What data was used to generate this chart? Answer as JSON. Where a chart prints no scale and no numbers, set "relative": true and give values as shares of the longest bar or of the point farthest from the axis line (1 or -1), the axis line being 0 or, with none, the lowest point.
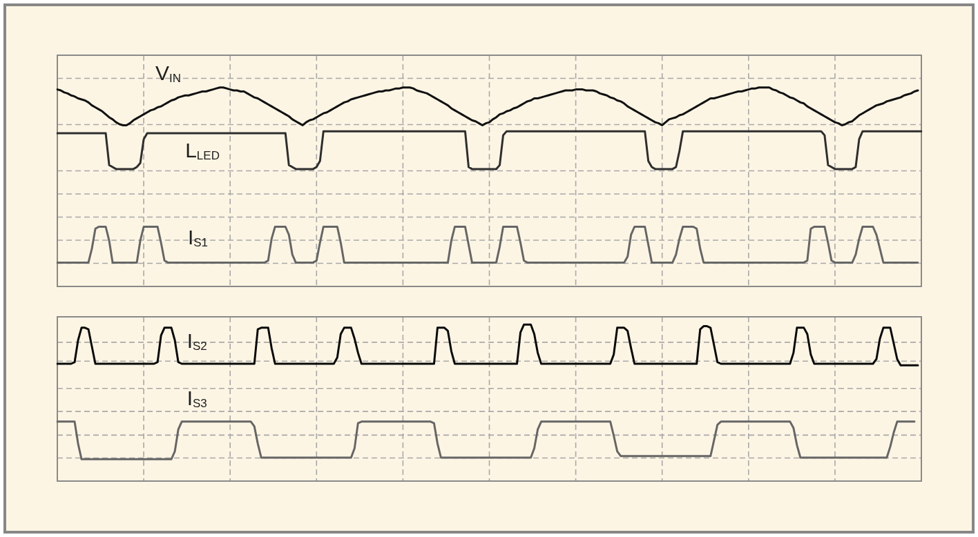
{
  "chart_data": [
    {
      "type": "line",
      "relative": true,
      "grid": true,
      "marker": "none",
      "categories": [
        null,
        null,
        null,
        null,
        null,
        null,
        null,
        null,
        null,
        null,
        null,
        null,
        null,
        null,
        null,
        null,
        null,
        null,
        null,
        null,
        null,
        null,
        null,
        null,
        null,
        null,
        null,
        null,
        null,
        null,
        null,
        null,
        null,
        null,
        null,
        null,
        null,
        null,
        null,
        null,
        null,
        null,
        null,
        null,
        null,
        null,
        null,
        null,
        null,
        null,
        null,
        null,
        null,
        null,
        null,
        null,
        null,
        null,
        null,
        null,
        null,
        null,
        null,
        null,
        null,
        null,
        null,
        null,
        null,
        null,
        null,
        null,
        null,
        null,
        null,
        null,
        null,
        null,
        null,
        null,
        null,
        null,
        null,
        null,
        null,
        null,
        null,
        null,
        null,
        null,
        null,
        null,
        null,
        null,
        null,
        null,
        null,
        null,
        null,
        null,
        null,
        null,
        null,
        null,
        null,
        null,
        null,
        null,
        null,
        null,
        null,
        null,
        null,
        null,
        null,
        null,
        null,
        null,
        null,
        null,
        null,
        null,
        null,
        null,
        null,
        null,
        null,
        null,
        null,
        null,
        null,
        null,
        null,
        null,
        null,
        null,
        null,
        null,
        null,
        null,
        null,
        null,
        null,
        null,
        null,
        null,
        null,
        null,
        null,
        null,
        null,
        null,
        null,
        null,
        null,
        null,
        null,
        null,
        null,
        null,
        null,
        null,
        null,
        null,
        null,
        null,
        null,
        null,
        null,
        null,
        null,
        null,
        null,
        null,
        null,
        null,
        null,
        null,
        null,
        null,
        null,
        null,
        null,
        null,
        null,
        null,
        null,
        null,
        null,
        null,
        null,
        null,
        null,
        null,
        null,
        null,
        null,
        null,
        null,
        null,
        null,
        null,
        null,
        null,
        null,
        null,
        null,
        null,
        null,
        null,
        null,
        null,
        null,
        null,
        null,
        null,
        null,
        null,
        null,
        null,
        null,
        null,
        null,
        null,
        null,
        null,
        null,
        null,
        null,
        null,
        null,
        null,
        null,
        null,
        null,
        null,
        null,
        null,
        null,
        null,
        null,
        null,
        null,
        null,
        null,
        null,
        null,
        null,
        null,
        null,
        null
      ],
      "series": [
        {
          "name": "V$_{IN}$",
          "color": "#111111",
          "values": [
            0.99,
            0.985,
            0.975,
            0.97,
            0.96,
            0.955,
            0.945,
            0.94,
            0.935,
            0.925,
            0.91,
            0.9,
            0.89,
            0.88,
            0.865,
            0.85,
            0.84,
            0.825,
            0.815,
            0.81,
            0.81,
            0.82,
            0.835,
            0.845,
            0.855,
            0.865,
            0.875,
            0.885,
            0.89,
            0.9,
            0.905,
            0.915,
            0.925,
            0.935,
            0.94,
            0.95,
            0.955,
            0.96,
            0.96,
            0.965,
            0.97,
            0.975,
            0.98,
            0.98,
            0.985,
            0.99,
            0.995,
            1,
            1,
            0.995,
            0.99,
            0.985,
            0.985,
            0.98,
            0.98,
            0.97,
            0.96,
            0.95,
            0.945,
            0.935,
            0.925,
            0.915,
            0.905,
            0.895,
            0.885,
            0.875,
            0.865,
            0.855,
            0.84,
            0.83,
            0.82,
            0.81,
            0.825,
            0.835,
            0.84,
            0.85,
            0.86,
            0.87,
            0.875,
            0.885,
            0.895,
            0.905,
            0.915,
            0.925,
            0.93,
            0.94,
            0.945,
            0.95,
            0.955,
            0.96,
            0.965,
            0.97,
            0.975,
            0.98,
            0.98,
            0.985,
            0.985,
            0.99,
            0.995,
            0.995,
            1,
            1,
            1,
            0.995,
            0.985,
            0.98,
            0.975,
            0.97,
            0.96,
            0.95,
            0.94,
            0.93,
            0.92,
            0.91,
            0.895,
            0.885,
            0.875,
            0.865,
            0.855,
            0.845,
            0.835,
            0.83,
            0.82,
            0.81,
            0.82,
            0.825,
            0.84,
            0.85,
            0.865,
            0.87,
            0.88,
            0.885,
            0.895,
            0.9,
            0.91,
            0.92,
            0.93,
            0.935,
            0.945,
            0.945,
            0.95,
            0.955,
            0.96,
            0.965,
            0.97,
            0.975,
            0.98,
            0.985,
            0.985,
            0.985,
            0.99,
            0.99,
            0.99,
            0.985,
            0.985,
            0.985,
            0.98,
            0.97,
            0.965,
            0.96,
            0.95,
            0.945,
            0.935,
            0.93,
            0.92,
            0.905,
            0.895,
            0.885,
            0.875,
            0.865,
            0.855,
            0.845,
            0.835,
            0.825,
            0.82,
            0.81,
            0.825,
            0.84,
            0.845,
            0.85,
            0.86,
            0.865,
            0.875,
            0.885,
            0.895,
            0.905,
            0.915,
            0.925,
            0.935,
            0.945,
            0.945,
            0.95,
            0.955,
            0.96,
            0.965,
            0.97,
            0.975,
            0.98,
            0.98,
            0.985,
            0.99,
            0.995,
            0.995,
            1,
            1,
            1,
            1,
            0.99,
            0.985,
            0.975,
            0.97,
            0.96,
            0.95,
            0.945,
            0.935,
            0.925,
            0.92,
            0.905,
            0.895,
            0.885,
            0.875,
            0.865,
            0.855,
            0.845,
            0.835,
            0.825,
            0.82,
            0.81,
            0.815,
            0.825,
            0.83,
            0.845,
            0.86,
            0.87,
            0.88,
            0.89,
            0.9,
            0.91,
            0.915,
            0.92,
            0.93,
            0.935,
            0.94,
            0.945,
            0.95,
            0.96,
            0.965,
            0.97,
            0.98,
            0.985,
            null
          ]
        },
        {
          "name": "L$_{LED}$",
          "color": "#2e2e2e",
          "values": [
            0.77,
            0.77,
            0.77,
            0.77,
            0.77,
            0.77,
            0.77,
            0.77,
            0.77,
            0.77,
            0.77,
            0.77,
            0.77,
            0.77,
            0.77,
            0.61,
            0.6,
            0.59,
            0.59,
            0.59,
            0.59,
            0.59,
            0.59,
            0.6,
            0.62,
            0.74,
            0.77,
            0.77,
            0.77,
            0.77,
            0.77,
            0.77,
            0.77,
            0.77,
            0.77,
            0.77,
            0.77,
            0.77,
            0.77,
            0.77,
            0.77,
            0.77,
            0.77,
            0.77,
            0.77,
            0.77,
            0.77,
            0.77,
            0.77,
            0.77,
            0.77,
            0.77,
            0.77,
            0.77,
            0.77,
            0.77,
            0.77,
            0.77,
            0.77,
            0.77,
            0.77,
            0.77,
            0.77,
            0.77,
            0.77,
            0.77,
            0.77,
            0.61,
            0.6,
            0.59,
            0.59,
            0.59,
            0.59,
            0.59,
            0.59,
            0.6,
            0.63,
            0.78,
            0.78,
            0.78,
            0.78,
            0.78,
            0.78,
            0.78,
            0.78,
            0.78,
            0.78,
            0.78,
            0.78,
            0.78,
            0.78,
            0.78,
            0.78,
            0.78,
            0.78,
            0.78,
            0.78,
            0.78,
            0.78,
            0.78,
            0.78,
            0.78,
            0.78,
            0.78,
            0.78,
            0.78,
            0.78,
            0.78,
            0.78,
            0.78,
            0.78,
            0.78,
            0.78,
            0.78,
            0.78,
            0.78,
            0.78,
            0.78,
            0.78,
            0.6,
            0.59,
            0.59,
            0.59,
            0.59,
            0.59,
            0.59,
            0.59,
            0.59,
            0.61,
            0.76,
            0.78,
            0.78,
            0.78,
            0.78,
            0.78,
            0.78,
            0.78,
            0.78,
            0.78,
            0.78,
            0.78,
            0.78,
            0.78,
            0.78,
            0.78,
            0.78,
            0.78,
            0.78,
            0.78,
            0.78,
            0.78,
            0.78,
            0.78,
            0.78,
            0.78,
            0.78,
            0.78,
            0.78,
            0.78,
            0.78,
            0.78,
            0.78,
            0.78,
            0.78,
            0.78,
            0.78,
            0.78,
            0.78,
            0.78,
            0.78,
            0.78,
            0.63,
            0.6,
            0.59,
            0.59,
            0.59,
            0.59,
            0.59,
            0.59,
            0.6,
            0.68,
            0.78,
            0.78,
            0.78,
            0.78,
            0.78,
            0.78,
            0.78,
            0.78,
            0.78,
            0.78,
            0.78,
            0.78,
            0.78,
            0.78,
            0.78,
            0.78,
            0.78,
            0.78,
            0.78,
            0.78,
            0.78,
            0.78,
            0.78,
            0.78,
            0.78,
            0.78,
            0.78,
            0.78,
            0.78,
            0.78,
            0.78,
            0.78,
            0.78,
            0.78,
            0.78,
            0.78,
            0.78,
            0.78,
            0.78,
            0.78,
            0.78,
            0.76,
            0.61,
            0.6,
            0.59,
            0.59,
            0.59,
            0.59,
            0.59,
            0.59,
            0.6,
            0.74,
            0.78,
            0.78,
            0.78,
            0.78,
            0.78,
            0.78,
            0.78,
            0.78,
            0.78,
            0.78,
            0.78,
            0.78,
            0.78,
            0.78,
            0.78,
            0.78,
            0.78,
            0.78
          ]
        },
        {
          "name": "I$_{S1}$",
          "color": "#666666",
          "values": [
            0.12,
            0.12,
            0.12,
            0.12,
            0.12,
            0.12,
            0.12,
            0.12,
            0.12,
            0.12,
            0.19,
            0.29,
            0.3,
            0.3,
            0.3,
            0.23,
            0.12,
            0.12,
            0.12,
            0.12,
            0.12,
            0.12,
            0.12,
            0.12,
            0.23,
            0.3,
            0.3,
            0.3,
            0.3,
            0.3,
            0.22,
            0.13,
            0.12,
            0.12,
            0.12,
            0.12,
            0.12,
            0.12,
            0.12,
            0.12,
            0.12,
            0.12,
            0.12,
            0.12,
            0.12,
            0.12,
            0.12,
            0.12,
            0.12,
            0.12,
            0.12,
            0.12,
            0.12,
            0.12,
            0.12,
            0.12,
            0.12,
            0.12,
            0.12,
            0.12,
            0.12,
            0.13,
            0.24,
            0.3,
            0.3,
            0.3,
            0.3,
            0.26,
            0.16,
            0.12,
            0.12,
            0.12,
            0.12,
            0.12,
            0.12,
            0.13,
            0.22,
            0.3,
            0.3,
            0.3,
            0.3,
            0.3,
            0.22,
            0.12,
            0.12,
            0.12,
            0.12,
            0.12,
            0.12,
            0.12,
            0.12,
            0.12,
            0.12,
            0.12,
            0.12,
            0.12,
            0.12,
            0.12,
            0.12,
            0.12,
            0.12,
            0.12,
            0.12,
            0.12,
            0.12,
            0.12,
            0.12,
            0.12,
            0.12,
            0.12,
            0.12,
            0.12,
            0.12,
            0.12,
            0.23,
            0.3,
            0.3,
            0.3,
            0.3,
            0.21,
            0.12,
            0.12,
            0.12,
            0.12,
            0.12,
            0.12,
            0.12,
            0.12,
            0.2,
            0.3,
            0.3,
            0.3,
            0.3,
            0.3,
            0.22,
            0.13,
            0.12,
            0.12,
            0.12,
            0.12,
            0.12,
            0.12,
            0.12,
            0.12,
            0.12,
            0.12,
            0.12,
            0.12,
            0.12,
            0.12,
            0.12,
            0.12,
            0.12,
            0.12,
            0.12,
            0.12,
            0.12,
            0.12,
            0.12,
            0.12,
            0.12,
            0.12,
            0.12,
            0.12,
            0.12,
            0.15,
            0.26,
            0.3,
            0.3,
            0.3,
            0.3,
            0.21,
            0.12,
            0.12,
            0.12,
            0.12,
            0.12,
            0.12,
            0.12,
            0.16,
            0.24,
            0.3,
            0.3,
            0.3,
            0.3,
            0.29,
            0.19,
            0.12,
            0.12,
            0.12,
            0.12,
            0.12,
            0.12,
            0.12,
            0.12,
            0.12,
            0.12,
            0.12,
            0.12,
            0.12,
            0.12,
            0.12,
            0.12,
            0.12,
            0.12,
            0.12,
            0.12,
            0.12,
            0.12,
            0.12,
            0.12,
            0.12,
            0.12,
            0.12,
            0.12,
            0.12,
            0.12,
            0.13,
            0.29,
            0.3,
            0.3,
            0.3,
            0.3,
            0.22,
            0.13,
            0.12,
            0.12,
            0.12,
            0.12,
            0.12,
            0.12,
            0.16,
            0.24,
            0.3,
            0.3,
            0.3,
            0.3,
            0.26,
            0.19,
            0.12,
            0.12,
            0.12,
            0.12,
            0.12,
            0.12,
            0.12,
            0.12,
            0.12,
            0.12,
            0.12,
            null
          ]
        }
      ]
    },
    {
      "type": "line",
      "relative": true,
      "grid": true,
      "marker": "none",
      "categories": [
        null,
        null,
        null,
        null,
        null,
        null,
        null,
        null,
        null,
        null,
        null,
        null,
        null,
        null,
        null,
        null,
        null,
        null,
        null,
        null,
        null,
        null,
        null,
        null,
        null,
        null,
        null,
        null,
        null,
        null,
        null,
        null,
        null,
        null,
        null,
        null,
        null,
        null,
        null,
        null,
        null,
        null,
        null,
        null,
        null,
        null,
        null,
        null,
        null,
        null,
        null,
        null,
        null,
        null,
        null,
        null,
        null,
        null,
        null,
        null,
        null,
        null,
        null,
        null,
        null,
        null,
        null,
        null,
        null,
        null,
        null,
        null,
        null,
        null,
        null,
        null,
        null,
        null,
        null,
        null,
        null,
        null,
        null,
        null,
        null,
        null,
        null,
        null,
        null,
        null,
        null,
        null,
        null,
        null,
        null,
        null,
        null,
        null,
        null,
        null,
        null,
        null,
        null,
        null,
        null,
        null,
        null,
        null,
        null,
        null,
        null,
        null,
        null,
        null,
        null,
        null,
        null,
        null,
        null,
        null,
        null,
        null,
        null,
        null,
        null,
        null,
        null,
        null,
        null,
        null,
        null,
        null,
        null,
        null,
        null,
        null,
        null,
        null,
        null,
        null,
        null,
        null,
        null,
        null,
        null,
        null,
        null,
        null,
        null,
        null,
        null,
        null,
        null,
        null,
        null,
        null,
        null,
        null,
        null,
        null,
        null,
        null,
        null,
        null,
        null,
        null,
        null,
        null,
        null,
        null,
        null,
        null,
        null,
        null,
        null,
        null,
        null,
        null,
        null,
        null,
        null,
        null,
        null,
        null,
        null,
        null,
        null,
        null,
        null,
        null,
        null,
        null,
        null,
        null,
        null,
        null,
        null,
        null,
        null,
        null,
        null,
        null,
        null,
        null,
        null,
        null,
        null,
        null,
        null,
        null,
        null,
        null,
        null,
        null,
        null,
        null,
        null,
        null,
        null,
        null,
        null,
        null,
        null,
        null,
        null,
        null,
        null,
        null,
        null,
        null,
        null,
        null,
        null,
        null,
        null,
        null,
        null,
        null,
        null,
        null,
        null,
        null,
        null,
        null,
        null,
        null,
        null,
        null,
        null,
        null,
        null
      ],
      "series": [
        {
          "name": "I$_{S2}$",
          "color": "#0a0a0a",
          "values": [
            0.75,
            0.75,
            0.75,
            0.75,
            0.75,
            0.76,
            0.9,
            0.98,
            0.98,
            0.97,
            0.86,
            0.75,
            0.75,
            0.75,
            0.75,
            0.75,
            0.75,
            0.75,
            0.75,
            0.75,
            0.75,
            0.75,
            0.75,
            0.75,
            0.75,
            0.75,
            0.75,
            0.75,
            0.75,
            0.76,
            0.93,
            0.98,
            0.98,
            0.98,
            0.9,
            0.76,
            0.75,
            0.75,
            0.75,
            0.75,
            0.75,
            0.75,
            0.75,
            0.75,
            0.75,
            0.75,
            0.75,
            0.75,
            0.75,
            0.75,
            0.75,
            0.75,
            0.75,
            0.75,
            0.75,
            0.75,
            0.75,
            0.75,
            0.97,
            0.98,
            0.98,
            0.98,
            0.85,
            0.75,
            0.75,
            0.75,
            0.75,
            0.75,
            0.75,
            0.75,
            0.75,
            0.75,
            0.75,
            0.75,
            0.75,
            0.75,
            0.75,
            0.75,
            0.75,
            0.75,
            0.75,
            0.79,
            0.94,
            0.98,
            0.98,
            0.98,
            0.91,
            0.82,
            0.75,
            0.75,
            0.75,
            0.75,
            0.75,
            0.75,
            0.75,
            0.75,
            0.75,
            0.75,
            0.75,
            0.75,
            0.75,
            0.75,
            0.75,
            0.75,
            0.75,
            0.75,
            0.75,
            0.75,
            0.75,
            0.75,
            0.98,
            0.98,
            0.98,
            0.96,
            0.83,
            0.75,
            0.75,
            0.75,
            0.75,
            0.75,
            0.75,
            0.75,
            0.75,
            0.75,
            0.75,
            0.75,
            0.75,
            0.75,
            0.75,
            0.75,
            0.75,
            0.75,
            0.75,
            0.75,
            0.95,
            1,
            1,
            1,
            0.94,
            0.82,
            0.75,
            0.75,
            0.75,
            0.75,
            0.75,
            0.75,
            0.75,
            0.75,
            0.75,
            0.75,
            0.75,
            0.75,
            0.75,
            0.75,
            0.75,
            0.75,
            0.75,
            0.75,
            0.75,
            0.75,
            0.75,
            0.81,
            0.98,
            0.98,
            0.98,
            0.96,
            0.85,
            0.75,
            0.75,
            0.75,
            0.75,
            0.75,
            0.75,
            0.75,
            0.75,
            0.75,
            0.75,
            0.75,
            0.75,
            0.75,
            0.75,
            0.75,
            0.75,
            0.75,
            0.75,
            0.75,
            0.97,
            0.99,
            0.99,
            0.98,
            0.87,
            0.76,
            0.75,
            0.75,
            0.75,
            0.75,
            0.75,
            0.75,
            0.75,
            0.75,
            0.75,
            0.75,
            0.75,
            0.75,
            0.75,
            0.75,
            0.75,
            0.75,
            0.75,
            0.75,
            0.75,
            0.75,
            0.75,
            0.82,
            0.98,
            0.98,
            0.98,
            0.94,
            0.81,
            0.75,
            0.75,
            0.75,
            0.75,
            0.75,
            0.75,
            0.75,
            0.75,
            0.75,
            0.75,
            0.75,
            0.75,
            0.75,
            0.75,
            0.75,
            0.75,
            0.75,
            0.75,
            0.78,
            0.91,
            0.98,
            0.98,
            0.98,
            0.88,
            0.78,
            0.74,
            0.74,
            0.74,
            0.74,
            0.74,
            0.74,
            null
          ]
        },
        {
          "name": "I$_{S3}$",
          "color": "#666666",
          "values": [
            0.38,
            0.38,
            0.38,
            0.38,
            0.38,
            0.38,
            0.24,
            0.14,
            0.14,
            0.14,
            0.14,
            0.14,
            0.14,
            0.14,
            0.14,
            0.14,
            0.14,
            0.14,
            0.14,
            0.14,
            0.14,
            0.14,
            0.14,
            0.14,
            0.14,
            0.14,
            0.14,
            0.14,
            0.14,
            0.14,
            0.14,
            0.14,
            0.14,
            0.14,
            0.19,
            0.33,
            0.38,
            0.38,
            0.38,
            0.38,
            0.38,
            0.38,
            0.38,
            0.38,
            0.38,
            0.38,
            0.38,
            0.38,
            0.38,
            0.38,
            0.38,
            0.38,
            0.38,
            0.38,
            0.38,
            0.38,
            0.38,
            0.35,
            0.24,
            0.15,
            0.15,
            0.15,
            0.15,
            0.15,
            0.15,
            0.15,
            0.15,
            0.15,
            0.15,
            0.15,
            0.15,
            0.15,
            0.15,
            0.15,
            0.15,
            0.15,
            0.15,
            0.15,
            0.15,
            0.15,
            0.15,
            0.15,
            0.15,
            0.15,
            0.15,
            0.15,
            0.21,
            0.37,
            0.38,
            0.38,
            0.38,
            0.38,
            0.38,
            0.38,
            0.38,
            0.38,
            0.38,
            0.38,
            0.38,
            0.38,
            0.38,
            0.38,
            0.38,
            0.38,
            0.38,
            0.38,
            0.38,
            0.38,
            0.38,
            0.37,
            0.24,
            0.15,
            0.15,
            0.15,
            0.15,
            0.15,
            0.15,
            0.15,
            0.15,
            0.15,
            0.15,
            0.15,
            0.15,
            0.15,
            0.15,
            0.15,
            0.15,
            0.15,
            0.15,
            0.15,
            0.15,
            0.15,
            0.15,
            0.15,
            0.15,
            0.15,
            0.15,
            0.15,
            0.21,
            0.33,
            0.38,
            0.38,
            0.38,
            0.38,
            0.38,
            0.38,
            0.38,
            0.38,
            0.38,
            0.38,
            0.38,
            0.38,
            0.38,
            0.38,
            0.38,
            0.38,
            0.38,
            0.38,
            0.38,
            0.38,
            0.38,
            0.29,
            0.19,
            0.16,
            0.16,
            0.16,
            0.16,
            0.16,
            0.16,
            0.16,
            0.16,
            0.16,
            0.16,
            0.16,
            0.16,
            0.16,
            0.16,
            0.16,
            0.16,
            0.16,
            0.16,
            0.16,
            0.16,
            0.16,
            0.16,
            0.16,
            0.16,
            0.16,
            0.16,
            0.16,
            0.26,
            0.36,
            0.38,
            0.38,
            0.38,
            0.38,
            0.38,
            0.38,
            0.38,
            0.38,
            0.38,
            0.38,
            0.38,
            0.38,
            0.38,
            0.38,
            0.38,
            0.38,
            0.38,
            0.38,
            0.38,
            0.38,
            0.38,
            0.34,
            0.23,
            0.15,
            0.15,
            0.15,
            0.15,
            0.15,
            0.15,
            0.15,
            0.15,
            0.15,
            0.15,
            0.15,
            0.15,
            0.15,
            0.15,
            0.15,
            0.15,
            0.15,
            0.15,
            0.15,
            0.15,
            0.15,
            0.15,
            0.15,
            0.15,
            0.15,
            0.15,
            0.22,
            0.31,
            0.38,
            0.38,
            0.38,
            0.38,
            0.38,
            0.38,
            null,
            null
          ]
        }
      ]
    }
  ]
}
